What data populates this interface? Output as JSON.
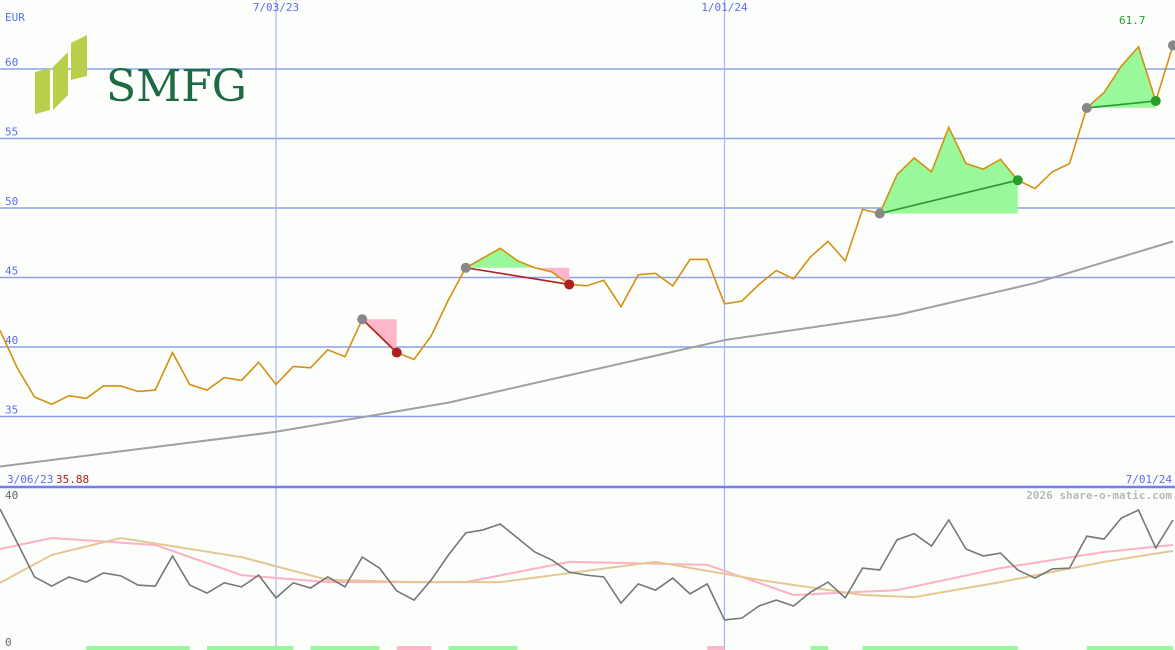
{
  "logo": {
    "text": "SMFG",
    "colors": {
      "text": "#1d6a43",
      "mark": "#b8cf4a"
    }
  },
  "header": {
    "currency": "EUR",
    "last_price_label": "61.7"
  },
  "footer": {
    "start_date_label": "3/06/23",
    "min_price_label": "35.88",
    "end_date_label": "7/01/24",
    "copyright": "2026 share-o-matic.com"
  },
  "colors": {
    "price": "#d4900f",
    "ma": "#a0a0a0",
    "grid": "#8e9ff0",
    "vgrid": "#a8b4f4",
    "gain": "#99f899",
    "loss": "#ffb6c8",
    "gain_dot": "#2a9a2a",
    "loss_dot": "#b02020",
    "osc": "#777777",
    "osc_pink": "#ffb0c4",
    "osc_tan": "#e4c894"
  },
  "chart_data": [
    {
      "type": "line",
      "title": "",
      "ylabel": "EUR",
      "ylim": [
        30.5,
        63.5
      ],
      "yticks": [
        "35",
        "40",
        "45",
        "50",
        "55",
        "60"
      ],
      "xticks": [
        {
          "date": "2023-07-03",
          "label": "7/03/23"
        },
        {
          "date": "2024-01-01",
          "label": "1/01/24"
        }
      ],
      "grid": true,
      "x": [
        "2023-03-13",
        "2023-03-20",
        "2023-03-27",
        "2023-04-03",
        "2023-04-10",
        "2023-04-17",
        "2023-04-24",
        "2023-05-01",
        "2023-05-08",
        "2023-05-15",
        "2023-05-22",
        "2023-05-29",
        "2023-06-05",
        "2023-06-12",
        "2023-06-19",
        "2023-06-26",
        "2023-07-03",
        "2023-07-10",
        "2023-07-17",
        "2023-07-24",
        "2023-07-31",
        "2023-08-07",
        "2023-08-14",
        "2023-08-21",
        "2023-08-28",
        "2023-09-04",
        "2023-09-11",
        "2023-09-18",
        "2023-09-25",
        "2023-10-02",
        "2023-10-09",
        "2023-10-16",
        "2023-10-23",
        "2023-10-30",
        "2023-11-06",
        "2023-11-13",
        "2023-11-20",
        "2023-11-27",
        "2023-12-04",
        "2023-12-11",
        "2023-12-18",
        "2023-12-25",
        "2024-01-01",
        "2024-01-08",
        "2024-01-15",
        "2024-01-22",
        "2024-01-29",
        "2024-02-05",
        "2024-02-12",
        "2024-02-19",
        "2024-02-26",
        "2024-03-04",
        "2024-03-11",
        "2024-03-18",
        "2024-03-25",
        "2024-04-01",
        "2024-04-08",
        "2024-04-15",
        "2024-04-22",
        "2024-04-29",
        "2024-05-06",
        "2024-05-13",
        "2024-05-20",
        "2024-05-27",
        "2024-06-03",
        "2024-06-10",
        "2024-06-17",
        "2024-06-24",
        "2024-07-01"
      ],
      "series": [
        {
          "key": "price",
          "values": [
            41.2,
            38.5,
            36.4,
            35.88,
            36.5,
            36.3,
            37.2,
            37.2,
            36.8,
            36.9,
            39.6,
            37.3,
            36.9,
            37.8,
            37.6,
            38.9,
            37.3,
            38.6,
            38.5,
            39.8,
            39.3,
            42.0,
            40.8,
            39.6,
            39.1,
            40.8,
            43.4,
            45.7,
            46.4,
            47.1,
            46.2,
            45.7,
            45.4,
            44.5,
            44.4,
            44.8,
            42.9,
            45.2,
            45.3,
            44.4,
            46.3,
            46.3,
            43.1,
            43.3,
            44.5,
            45.5,
            44.9,
            46.5,
            47.6,
            46.2,
            49.9,
            49.6,
            52.4,
            53.6,
            52.6,
            55.8,
            53.2,
            52.8,
            53.5,
            52.0,
            51.4,
            52.6,
            53.2,
            57.2,
            58.3,
            60.2,
            61.6,
            57.7,
            61.7
          ]
        },
        {
          "key": "moving_average",
          "points": [
            [
              0,
              31.4
            ],
            [
              16,
              33.9
            ],
            [
              26,
              36.0
            ],
            [
              42,
              40.5
            ],
            [
              52,
              42.3
            ],
            [
              60,
              44.6
            ],
            [
              68,
              47.6
            ]
          ]
        }
      ],
      "signals": [
        {
          "start": 21,
          "end": 23,
          "result": "loss"
        },
        {
          "start": 27,
          "end": 33,
          "result": "loss"
        },
        {
          "start": 51,
          "end": 59,
          "result": "gain"
        },
        {
          "start": 63,
          "end": 67,
          "result": "gain"
        }
      ]
    },
    {
      "type": "line",
      "title": "",
      "ylim": [
        0,
        40
      ],
      "yticks": [
        "0",
        "40"
      ],
      "series": [
        {
          "key": "oscillator",
          "values": [
            36.2,
            27.0,
            17.7,
            15.2,
            17.7,
            16.3,
            18.8,
            18.0,
            15.5,
            15.2,
            23.4,
            15.5,
            13.3,
            16.1,
            15.0,
            18.2,
            12.0,
            16.1,
            14.7,
            17.7,
            15.0,
            23.1,
            20.1,
            13.9,
            11.4,
            16.9,
            23.7,
            29.7,
            30.5,
            32.1,
            28.3,
            24.5,
            22.3,
            19.0,
            18.2,
            17.7,
            10.6,
            15.8,
            14.1,
            17.4,
            13.1,
            15.8,
            6.0,
            6.5,
            9.8,
            11.4,
            9.8,
            13.6,
            16.3,
            12.0,
            20.1,
            19.6,
            27.8,
            29.5,
            26.1,
            33.2,
            25.3,
            23.4,
            24.2,
            19.6,
            17.4,
            19.9,
            20.1,
            28.8,
            28.0,
            33.7,
            35.9,
            25.6,
            33.2
          ]
        },
        {
          "key": "signal_pink",
          "points": [
            [
              0,
              25.3
            ],
            [
              3,
              28.3
            ],
            [
              9,
              26.4
            ],
            [
              14,
              18.2
            ],
            [
              19,
              16.3
            ],
            [
              27,
              16.3
            ],
            [
              33,
              21.8
            ],
            [
              41,
              21.0
            ],
            [
              46,
              12.8
            ],
            [
              52,
              14.1
            ],
            [
              58,
              20.1
            ],
            [
              64,
              24.5
            ],
            [
              68,
              26.4
            ]
          ]
        },
        {
          "key": "signal_tan",
          "points": [
            [
              0,
              16.1
            ],
            [
              3,
              23.7
            ],
            [
              7,
              28.3
            ],
            [
              14,
              23.1
            ],
            [
              19,
              16.9
            ],
            [
              24,
              16.3
            ],
            [
              29,
              16.3
            ],
            [
              38,
              21.8
            ],
            [
              44,
              16.9
            ],
            [
              50,
              12.8
            ],
            [
              53,
              12.2
            ],
            [
              58,
              16.3
            ],
            [
              64,
              21.8
            ],
            [
              68,
              24.8
            ]
          ]
        }
      ],
      "volume_markers": [
        {
          "from": 5,
          "to": 11,
          "result": "gain"
        },
        {
          "from": 12,
          "to": 17,
          "result": "gain"
        },
        {
          "from": 18,
          "to": 22,
          "result": "gain"
        },
        {
          "from": 23,
          "to": 25,
          "result": "loss"
        },
        {
          "from": 26,
          "to": 30,
          "result": "gain"
        },
        {
          "from": 41,
          "to": 42,
          "result": "loss"
        },
        {
          "from": 47,
          "to": 48,
          "result": "gain"
        },
        {
          "from": 50,
          "to": 59,
          "result": "gain"
        },
        {
          "from": 63,
          "to": 68,
          "result": "gain"
        }
      ]
    }
  ]
}
